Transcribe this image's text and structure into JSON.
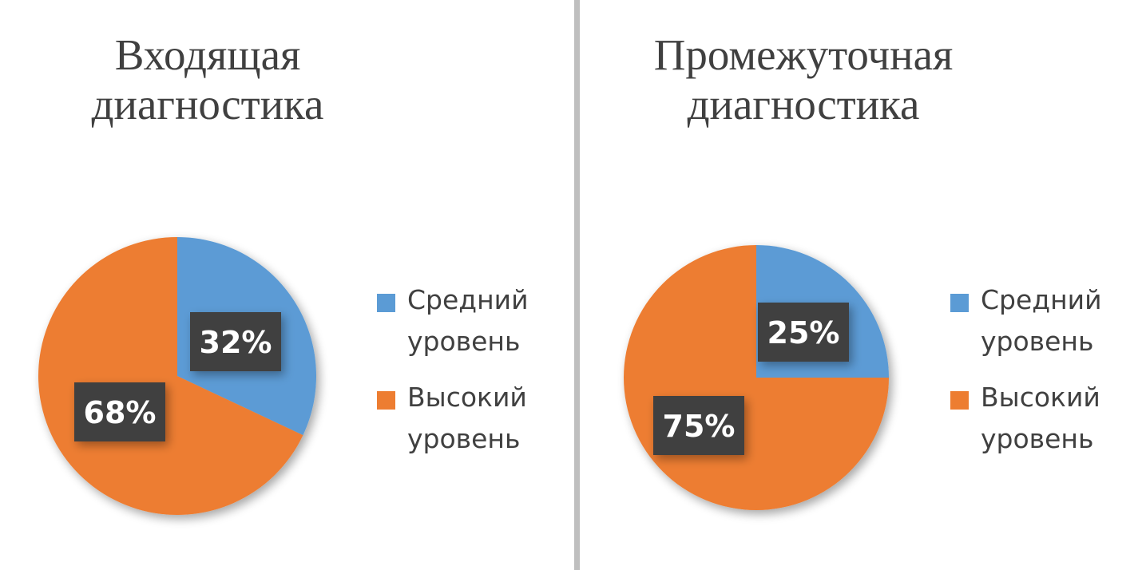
{
  "colors": {
    "medium": "#5b9bd5",
    "high": "#ed7d31",
    "label_bg": "#404040",
    "label_text": "#ffffff"
  },
  "chart_data": [
    {
      "type": "pie",
      "title_lines": [
        "Входящая",
        "диагностика"
      ],
      "slices": [
        {
          "name": "Средний уровень",
          "name_lines": [
            "Средний",
            "уровень"
          ],
          "value": 32,
          "label": "32%",
          "color": "#5b9bd5"
        },
        {
          "name": "Высокий уровень",
          "name_lines": [
            "Высокий",
            "уровень"
          ],
          "value": 68,
          "label": "68%",
          "color": "#ed7d31"
        }
      ],
      "legend_position": "right"
    },
    {
      "type": "pie",
      "title_lines": [
        "Промежуточная",
        "диагностика"
      ],
      "slices": [
        {
          "name": "Средний уровень",
          "name_lines": [
            "Средний",
            "уровень"
          ],
          "value": 25,
          "label": "25%",
          "color": "#5b9bd5"
        },
        {
          "name": "Высокий уровень",
          "name_lines": [
            "Высокий",
            "уровень"
          ],
          "value": 75,
          "label": "75%",
          "color": "#ed7d31"
        }
      ],
      "legend_position": "right"
    }
  ]
}
